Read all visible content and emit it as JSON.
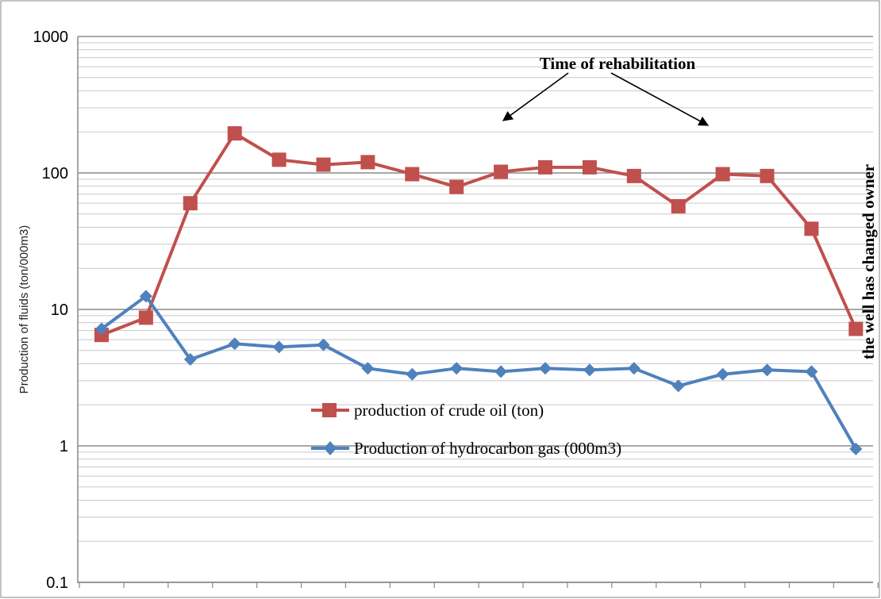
{
  "chart_data": {
    "type": "line",
    "ylabel": "Production of fluids (ton/000m3)",
    "xlabel": "",
    "y_scale": "log",
    "ylim": [
      0.1,
      1000
    ],
    "y_ticks": [
      "1000",
      "100",
      "10",
      "1",
      "0.1"
    ],
    "grid": "horizontal",
    "points": 18,
    "series": [
      {
        "name": "production of crude oil (ton)",
        "color": "#c0504d",
        "marker": "square",
        "values": [
          6.5,
          8.7,
          60,
          195,
          125,
          115,
          120,
          98,
          79,
          102,
          110,
          110,
          95,
          57,
          98,
          95,
          39,
          7.2
        ]
      },
      {
        "name": "Production of hydrocarbon gas (000m3)",
        "color": "#4f81bd",
        "marker": "diamond",
        "values": [
          7.2,
          12.5,
          4.3,
          5.6,
          5.3,
          5.5,
          3.7,
          3.35,
          3.7,
          3.5,
          3.7,
          3.6,
          3.7,
          2.75,
          3.35,
          3.6,
          3.5,
          0.95
        ]
      }
    ],
    "legend_position": "center",
    "annotations": {
      "rehabilitation": "Time of rehabilitation",
      "owner_change": "the well has changed owner"
    }
  }
}
